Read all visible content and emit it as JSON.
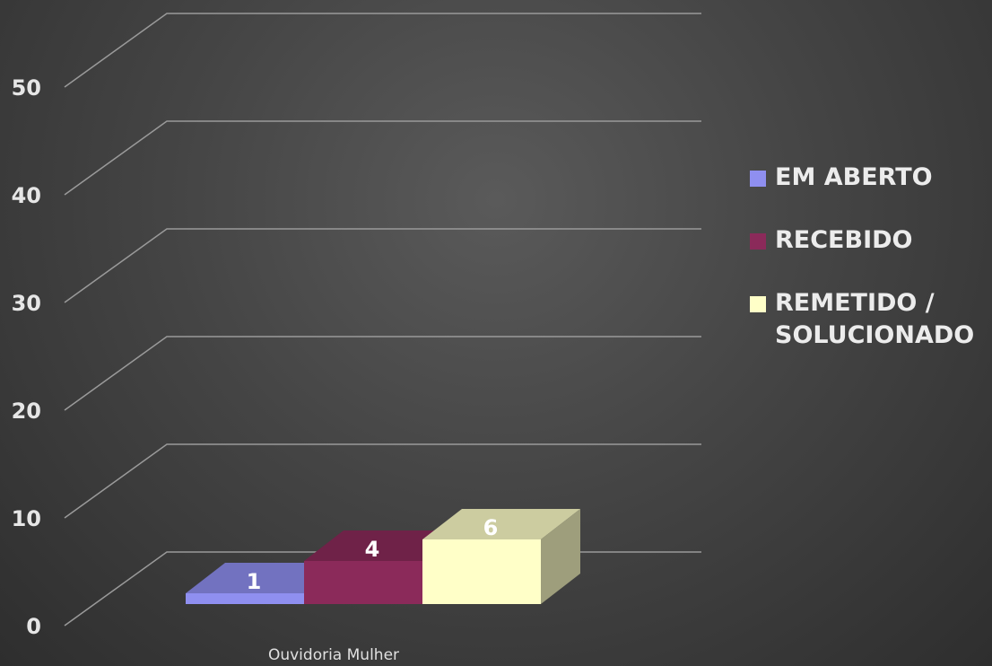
{
  "chart_data": {
    "type": "bar",
    "title": "",
    "xlabel": "",
    "ylabel": "",
    "categories": [
      "Ouvidoria Mulher"
    ],
    "ylim": [
      0,
      50
    ],
    "yticks": [
      "0",
      "10",
      "20",
      "30",
      "40",
      "50"
    ],
    "grid": true,
    "legend_position": "right",
    "series": [
      {
        "name": "EM ABERTO",
        "values": [
          1
        ],
        "label": "1",
        "color": "#8f8ff0"
      },
      {
        "name": "RECEBIDO",
        "values": [
          4
        ],
        "label": "4",
        "color": "#8b2a5a"
      },
      {
        "name": "REMETIDO / SOLUCIONADO",
        "values": [
          6
        ],
        "label": "6",
        "color": "#ffffc8"
      }
    ]
  }
}
